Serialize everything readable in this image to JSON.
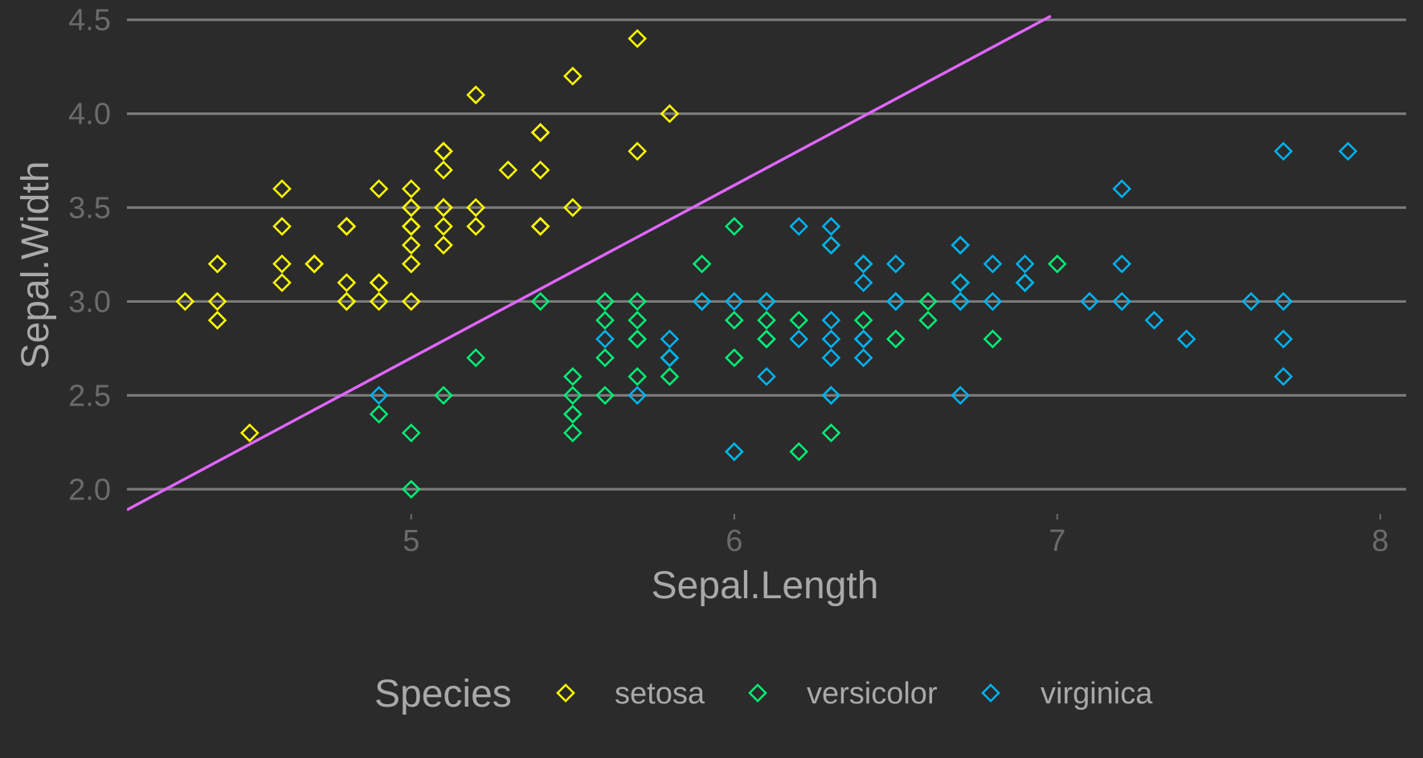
{
  "chart_data": {
    "type": "scatter",
    "title": "",
    "xlabel": "Sepal.Length",
    "ylabel": "Sepal.Width",
    "xlim": [
      4.12,
      8.08
    ],
    "ylim": [
      1.89,
      4.52
    ],
    "x_ticks": [
      5,
      6,
      7,
      8
    ],
    "y_ticks": [
      2.0,
      2.5,
      3.0,
      3.5,
      4.0,
      4.5
    ],
    "y_tick_labels": [
      "2.0",
      "2.5",
      "3.0",
      "3.5",
      "4.0",
      "4.5"
    ],
    "grid": "horizontal major lines only",
    "legend_placement": "bottom",
    "legend_title": "Species",
    "marker": "open diamond",
    "series": [
      {
        "name": "setosa",
        "color": "#ffff00",
        "points": [
          [
            5.1,
            3.5
          ],
          [
            4.9,
            3.0
          ],
          [
            4.7,
            3.2
          ],
          [
            4.6,
            3.1
          ],
          [
            5.0,
            3.6
          ],
          [
            5.4,
            3.9
          ],
          [
            4.6,
            3.4
          ],
          [
            5.0,
            3.4
          ],
          [
            4.4,
            2.9
          ],
          [
            4.9,
            3.1
          ],
          [
            5.4,
            3.7
          ],
          [
            4.8,
            3.4
          ],
          [
            4.8,
            3.0
          ],
          [
            4.3,
            3.0
          ],
          [
            5.8,
            4.0
          ],
          [
            5.7,
            4.4
          ],
          [
            5.4,
            3.9
          ],
          [
            5.1,
            3.5
          ],
          [
            5.7,
            3.8
          ],
          [
            5.1,
            3.8
          ],
          [
            5.4,
            3.4
          ],
          [
            5.1,
            3.7
          ],
          [
            4.6,
            3.6
          ],
          [
            5.1,
            3.3
          ],
          [
            4.8,
            3.4
          ],
          [
            5.0,
            3.0
          ],
          [
            5.0,
            3.4
          ],
          [
            5.2,
            3.5
          ],
          [
            5.2,
            3.4
          ],
          [
            4.7,
            3.2
          ],
          [
            4.8,
            3.1
          ],
          [
            5.4,
            3.4
          ],
          [
            5.2,
            4.1
          ],
          [
            5.5,
            4.2
          ],
          [
            4.9,
            3.1
          ],
          [
            5.0,
            3.2
          ],
          [
            5.5,
            3.5
          ],
          [
            4.9,
            3.6
          ],
          [
            4.4,
            3.0
          ],
          [
            5.1,
            3.4
          ],
          [
            5.0,
            3.5
          ],
          [
            4.5,
            2.3
          ],
          [
            4.4,
            3.2
          ],
          [
            5.0,
            3.5
          ],
          [
            5.1,
            3.8
          ],
          [
            4.8,
            3.0
          ],
          [
            5.1,
            3.8
          ],
          [
            4.6,
            3.2
          ],
          [
            5.3,
            3.7
          ],
          [
            5.0,
            3.3
          ]
        ]
      },
      {
        "name": "versicolor",
        "color": "#00ee76",
        "points": [
          [
            7.0,
            3.2
          ],
          [
            6.4,
            3.2
          ],
          [
            6.9,
            3.1
          ],
          [
            5.5,
            2.3
          ],
          [
            6.5,
            2.8
          ],
          [
            5.7,
            2.8
          ],
          [
            6.3,
            3.3
          ],
          [
            4.9,
            2.4
          ],
          [
            6.6,
            2.9
          ],
          [
            5.2,
            2.7
          ],
          [
            5.0,
            2.0
          ],
          [
            5.9,
            3.0
          ],
          [
            6.0,
            2.2
          ],
          [
            6.1,
            2.9
          ],
          [
            5.6,
            2.9
          ],
          [
            6.7,
            3.1
          ],
          [
            5.6,
            3.0
          ],
          [
            5.8,
            2.7
          ],
          [
            6.2,
            2.2
          ],
          [
            5.6,
            2.5
          ],
          [
            5.9,
            3.2
          ],
          [
            6.1,
            2.8
          ],
          [
            6.3,
            2.5
          ],
          [
            6.1,
            2.8
          ],
          [
            6.4,
            2.9
          ],
          [
            6.6,
            3.0
          ],
          [
            6.8,
            2.8
          ],
          [
            6.7,
            3.0
          ],
          [
            6.0,
            2.9
          ],
          [
            5.7,
            2.6
          ],
          [
            5.5,
            2.4
          ],
          [
            5.5,
            2.4
          ],
          [
            5.8,
            2.7
          ],
          [
            6.0,
            2.7
          ],
          [
            5.4,
            3.0
          ],
          [
            6.0,
            3.4
          ],
          [
            6.7,
            3.1
          ],
          [
            6.3,
            2.3
          ],
          [
            5.6,
            3.0
          ],
          [
            5.5,
            2.5
          ],
          [
            5.5,
            2.6
          ],
          [
            6.1,
            3.0
          ],
          [
            5.8,
            2.6
          ],
          [
            5.0,
            2.3
          ],
          [
            5.6,
            2.7
          ],
          [
            5.7,
            3.0
          ],
          [
            5.7,
            2.9
          ],
          [
            6.2,
            2.9
          ],
          [
            5.1,
            2.5
          ],
          [
            5.7,
            2.8
          ]
        ]
      },
      {
        "name": "virginica",
        "color": "#00b2ee",
        "points": [
          [
            6.3,
            3.3
          ],
          [
            5.8,
            2.7
          ],
          [
            7.1,
            3.0
          ],
          [
            6.3,
            2.9
          ],
          [
            6.5,
            3.0
          ],
          [
            7.6,
            3.0
          ],
          [
            4.9,
            2.5
          ],
          [
            7.3,
            2.9
          ],
          [
            6.7,
            2.5
          ],
          [
            7.2,
            3.6
          ],
          [
            6.5,
            3.2
          ],
          [
            6.4,
            2.7
          ],
          [
            6.8,
            3.0
          ],
          [
            5.7,
            2.5
          ],
          [
            5.8,
            2.8
          ],
          [
            6.4,
            3.2
          ],
          [
            6.5,
            3.0
          ],
          [
            7.7,
            3.8
          ],
          [
            7.7,
            2.6
          ],
          [
            6.0,
            2.2
          ],
          [
            6.9,
            3.2
          ],
          [
            5.6,
            2.8
          ],
          [
            7.7,
            2.8
          ],
          [
            6.3,
            2.7
          ],
          [
            6.7,
            3.3
          ],
          [
            7.2,
            3.2
          ],
          [
            6.2,
            2.8
          ],
          [
            6.1,
            3.0
          ],
          [
            6.4,
            2.8
          ],
          [
            7.2,
            3.0
          ],
          [
            7.4,
            2.8
          ],
          [
            7.9,
            3.8
          ],
          [
            6.4,
            2.8
          ],
          [
            6.3,
            2.8
          ],
          [
            6.1,
            2.6
          ],
          [
            7.7,
            3.0
          ],
          [
            6.3,
            3.4
          ],
          [
            6.4,
            3.1
          ],
          [
            6.0,
            3.0
          ],
          [
            6.9,
            3.1
          ],
          [
            6.7,
            3.1
          ],
          [
            6.9,
            3.1
          ],
          [
            5.8,
            2.7
          ],
          [
            6.8,
            3.2
          ],
          [
            6.7,
            3.3
          ],
          [
            6.7,
            3.0
          ],
          [
            6.3,
            2.5
          ],
          [
            6.5,
            3.0
          ],
          [
            6.2,
            3.4
          ],
          [
            5.9,
            3.0
          ]
        ]
      }
    ],
    "trend_line": {
      "color": "#e066ff",
      "from": [
        4.12,
        1.89
      ],
      "to": [
        6.98,
        4.52
      ]
    }
  }
}
